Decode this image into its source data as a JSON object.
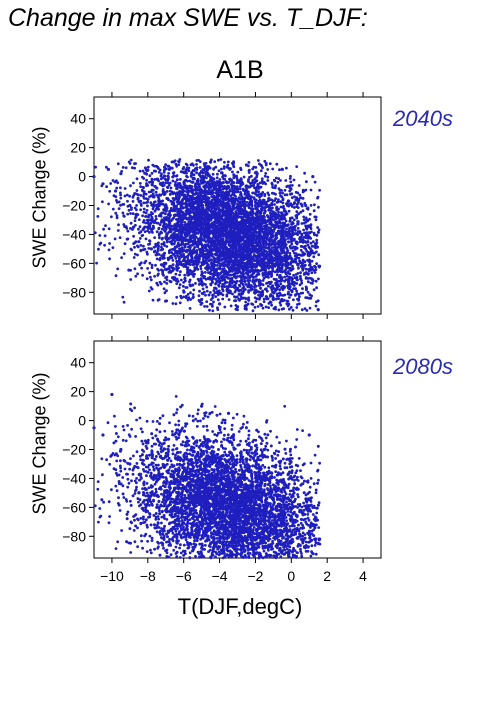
{
  "title": "Change in max SWE vs. T_DJF:",
  "scenario": "A1B",
  "xlabel": "T(DJF,degC)",
  "ylabel": "SWE Change (%)",
  "chart_data": [
    {
      "type": "scatter",
      "title": "2040s",
      "xlabel": "T(DJF,degC)",
      "ylabel": "SWE Change (%)",
      "xlim": [
        -11,
        5
      ],
      "ylim": [
        -95,
        55
      ],
      "xticks": [
        -10,
        -8,
        -6,
        -4,
        -2,
        0,
        2,
        4
      ],
      "yticks": [
        -80,
        -60,
        -40,
        -20,
        0,
        20,
        40
      ],
      "x_tick_labels_shown": false,
      "point_color": "#1f1fbf",
      "cloud": {
        "x_range": [
          -11,
          1.6
        ],
        "y_range": [
          -93,
          12
        ],
        "center": [
          -3.5,
          -40
        ],
        "approx_points": 6000
      },
      "series": [
        {
          "values": [
            [
              -11.0,
              0
            ],
            [
              -10.5,
              -5
            ],
            [
              -10.2,
              5
            ],
            [
              -9.8,
              -10
            ],
            [
              -9.5,
              2
            ],
            [
              -9.0,
              -20
            ],
            [
              -8.8,
              -35
            ],
            [
              -8.5,
              -45
            ],
            [
              -8.2,
              -12
            ],
            [
              -7.8,
              -50
            ],
            [
              -7.5,
              -8
            ],
            [
              -7.2,
              -30
            ],
            [
              -7.0,
              -60
            ],
            [
              -6.8,
              5
            ],
            [
              -6.5,
              -70
            ],
            [
              -6.2,
              -25
            ],
            [
              -6.0,
              -55
            ],
            [
              -5.5,
              -75
            ],
            [
              -5.0,
              -85
            ],
            [
              -4.5,
              10
            ],
            [
              -4.0,
              -88
            ],
            [
              -3.5,
              -40
            ],
            [
              -3.0,
              -90
            ],
            [
              -2.5,
              8
            ],
            [
              -2.0,
              -80
            ],
            [
              -1.5,
              -60
            ],
            [
              -1.0,
              -85
            ],
            [
              -0.5,
              5
            ],
            [
              0.0,
              -70
            ],
            [
              0.5,
              -45
            ],
            [
              1.0,
              -65
            ],
            [
              1.5,
              -92
            ],
            [
              1.2,
              0
            ],
            [
              0.8,
              -20
            ]
          ]
        }
      ]
    },
    {
      "type": "scatter",
      "title": "2080s",
      "xlabel": "T(DJF,degC)",
      "ylabel": "SWE Change (%)",
      "xlim": [
        -11,
        5
      ],
      "ylim": [
        -95,
        55
      ],
      "xticks": [
        -10,
        -8,
        -6,
        -4,
        -2,
        0,
        2,
        4
      ],
      "yticks": [
        -80,
        -60,
        -40,
        -20,
        0,
        20,
        40
      ],
      "x_tick_labels_shown": true,
      "point_color": "#1f1fbf",
      "cloud": {
        "x_range": [
          -11,
          1.6
        ],
        "y_range": [
          -95,
          20
        ],
        "center": [
          -3.5,
          -60
        ],
        "approx_points": 6000
      },
      "series": [
        {
          "values": [
            [
              -11.0,
              -5
            ],
            [
              -10.5,
              -10
            ],
            [
              -10.0,
              18
            ],
            [
              -9.5,
              -20
            ],
            [
              -9.0,
              -30
            ],
            [
              -8.5,
              -50
            ],
            [
              -8.0,
              -15
            ],
            [
              -7.5,
              -60
            ],
            [
              -7.0,
              -25
            ],
            [
              -6.5,
              -80
            ],
            [
              -6.0,
              -40
            ],
            [
              -5.5,
              -90
            ],
            [
              -5.0,
              10
            ],
            [
              -4.5,
              -85
            ],
            [
              -4.0,
              -70
            ],
            [
              -3.5,
              5
            ],
            [
              -3.0,
              -92
            ],
            [
              -2.5,
              -60
            ],
            [
              -2.0,
              -88
            ],
            [
              -1.5,
              -20
            ],
            [
              -1.0,
              -75
            ],
            [
              -0.5,
              -90
            ],
            [
              0.0,
              -40
            ],
            [
              0.5,
              -80
            ],
            [
              1.0,
              -10
            ],
            [
              1.5,
              -85
            ],
            [
              1.2,
              -60
            ]
          ]
        }
      ]
    }
  ],
  "x_tick_labels": [
    "−10",
    "−8",
    "−6",
    "−4",
    "−2",
    "0",
    "2",
    "4"
  ],
  "y_tick_labels": [
    "−80",
    "−60",
    "−40",
    "−20",
    "0",
    "20",
    "40"
  ]
}
